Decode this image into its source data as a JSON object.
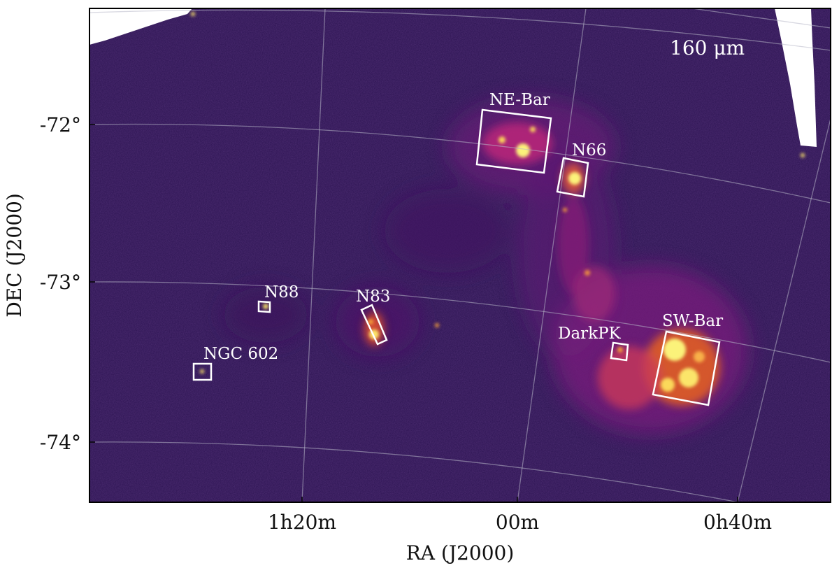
{
  "figure": {
    "band_label": "160 μm",
    "xlabel": "RA (J2000)",
    "ylabel": "DEC (J2000)",
    "x_ticks": [
      "1h20m",
      "00m",
      "0h40m"
    ],
    "y_ticks": [
      "-72°",
      "-73°",
      "-74°"
    ]
  },
  "regions": [
    {
      "id": "ne-bar",
      "label": "NE-Bar"
    },
    {
      "id": "n66",
      "label": "N66"
    },
    {
      "id": "n88",
      "label": "N88"
    },
    {
      "id": "n83",
      "label": "N83"
    },
    {
      "id": "ngc602",
      "label": "NGC 602"
    },
    {
      "id": "darkpk",
      "label": "DarkPK"
    },
    {
      "id": "sw-bar",
      "label": "SW-Bar"
    }
  ],
  "colors": {
    "background_map": "#2a1250",
    "emission_mid": "#a8207a",
    "emission_bright": "#f2700f",
    "emission_peak": "#fbf27a",
    "box_stroke": "#ffffff"
  }
}
